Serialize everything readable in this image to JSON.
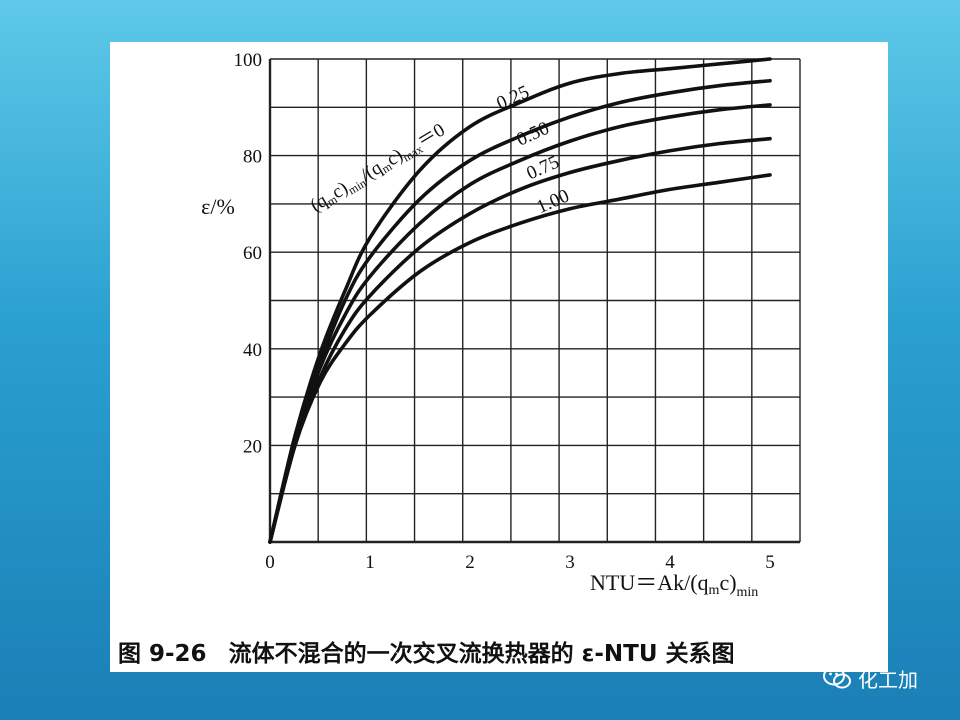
{
  "caption": {
    "number": "图 9-26",
    "text": "流体不混合的一次交叉流换热器的 ε-NTU 关系图"
  },
  "watermark": {
    "text": "化工加"
  },
  "chart_data": {
    "type": "line",
    "ylabel": "ε/%",
    "xlabel": "NTU＝Ak/(q",
    "xlabel_parts": {
      "main": "NTU＝Ak/(q",
      "sub_m": "m",
      "c": "c)",
      "sub_min": "min"
    },
    "xlim": [
      0,
      5.3
    ],
    "ylim": [
      0,
      100
    ],
    "x_ticks": [
      "0",
      "1",
      "2",
      "3",
      "4",
      "5"
    ],
    "y_ticks": [
      "20",
      "40",
      "60",
      "80",
      "100"
    ],
    "grid": true,
    "ratio_label": "(q",
    "ratio_label_parts": [
      "(q",
      "m",
      "c)",
      "min",
      "/(q",
      "m",
      "c)",
      "max",
      "＝0"
    ],
    "series": [
      {
        "name": "0",
        "x": [
          0,
          0.25,
          0.5,
          0.75,
          1,
          1.5,
          2,
          2.5,
          3,
          3.5,
          4,
          4.5,
          5
        ],
        "values": [
          0,
          22,
          39,
          52,
          63,
          77,
          86,
          91,
          95,
          97,
          98,
          99,
          100
        ]
      },
      {
        "name": "0.25",
        "x": [
          0,
          0.25,
          0.5,
          0.75,
          1,
          1.5,
          2,
          2.5,
          3,
          3.5,
          4,
          4.5,
          5
        ],
        "values": [
          0,
          21,
          37,
          50,
          59,
          71,
          79,
          84,
          88,
          91,
          93,
          94.5,
          95.5
        ]
      },
      {
        "name": "0.50",
        "x": [
          0,
          0.25,
          0.5,
          0.75,
          1,
          1.5,
          2,
          2.5,
          3,
          3.5,
          4,
          4.5,
          5
        ],
        "values": [
          0,
          21,
          36,
          47,
          55,
          66,
          74,
          79,
          83,
          86,
          88,
          89.5,
          90.5
        ]
      },
      {
        "name": "0.75",
        "x": [
          0,
          0.25,
          0.5,
          0.75,
          1,
          1.5,
          2,
          2.5,
          3,
          3.5,
          4,
          4.5,
          5
        ],
        "values": [
          0,
          20,
          34,
          44,
          51,
          61,
          68,
          73,
          76.5,
          79,
          81,
          82.5,
          83.5
        ]
      },
      {
        "name": "1.00",
        "x": [
          0,
          0.25,
          0.5,
          0.75,
          1,
          1.5,
          2,
          2.5,
          3,
          3.5,
          4,
          4.5,
          5
        ],
        "values": [
          0,
          20,
          33,
          41,
          47,
          56,
          62,
          66,
          69,
          71,
          73,
          74.5,
          76
        ]
      }
    ]
  }
}
